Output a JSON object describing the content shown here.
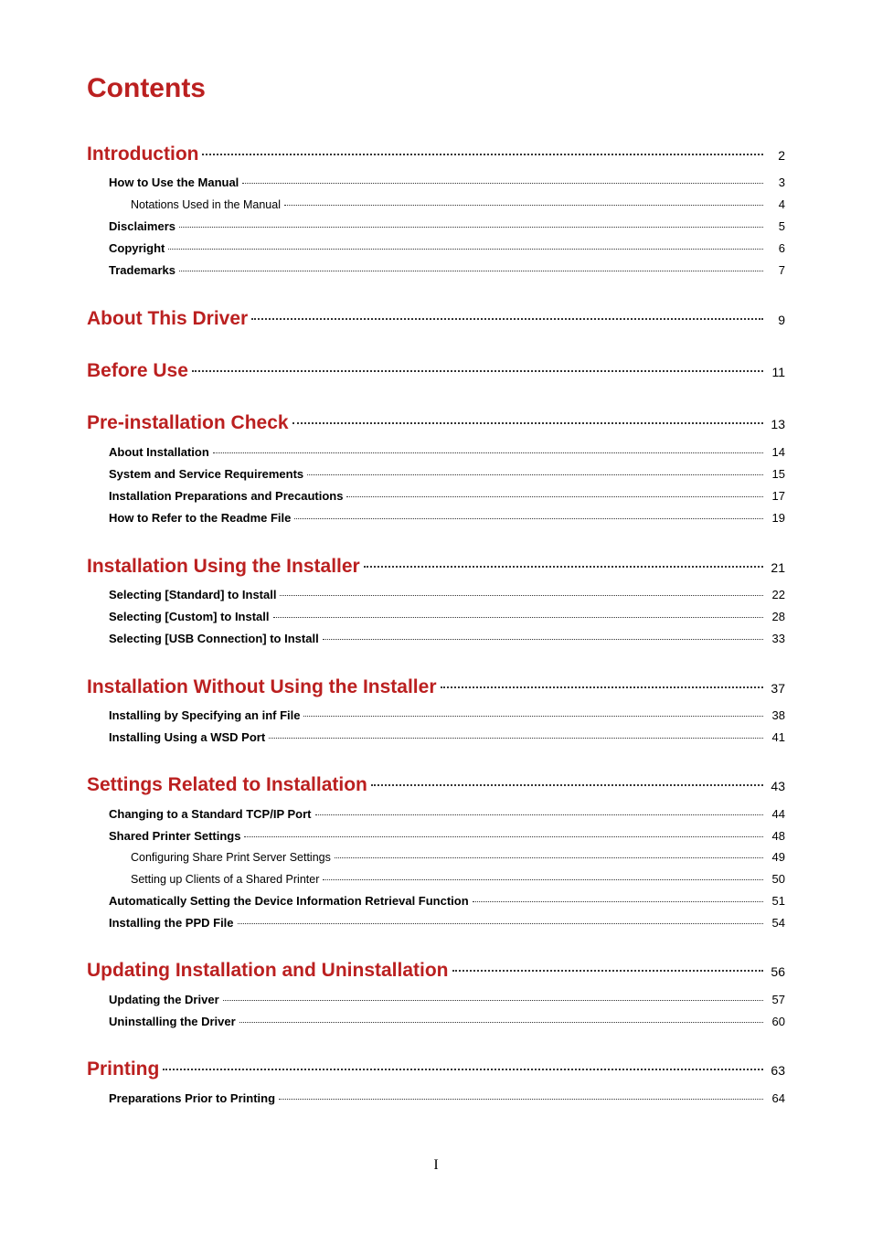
{
  "title": "Contents",
  "accent_color": "#bb2020",
  "page_footer": "I",
  "sections": [
    {
      "label": "Introduction",
      "page": "2",
      "children": [
        {
          "label": "How to Use the Manual",
          "page": "3",
          "children": [
            {
              "label": "Notations Used in the Manual",
              "page": "4"
            }
          ]
        },
        {
          "label": "Disclaimers",
          "page": "5"
        },
        {
          "label": "Copyright",
          "page": "6"
        },
        {
          "label": "Trademarks",
          "page": "7"
        }
      ]
    },
    {
      "label": "About This Driver",
      "page": "9",
      "children": []
    },
    {
      "label": "Before Use",
      "page": "11",
      "children": []
    },
    {
      "label": "Pre-installation Check",
      "page": "13",
      "children": [
        {
          "label": "About Installation",
          "page": "14"
        },
        {
          "label": "System and Service Requirements",
          "page": "15"
        },
        {
          "label": "Installation Preparations and Precautions",
          "page": "17"
        },
        {
          "label": "How to Refer to the Readme File",
          "page": "19"
        }
      ]
    },
    {
      "label": "Installation Using the Installer",
      "page": "21",
      "children": [
        {
          "label": "Selecting [Standard] to Install",
          "page": "22"
        },
        {
          "label": "Selecting [Custom] to Install",
          "page": "28"
        },
        {
          "label": "Selecting [USB Connection] to Install",
          "page": "33"
        }
      ]
    },
    {
      "label": "Installation Without Using the Installer",
      "page": "37",
      "children": [
        {
          "label": "Installing by Specifying an inf File",
          "page": "38"
        },
        {
          "label": "Installing Using a WSD Port",
          "page": "41"
        }
      ]
    },
    {
      "label": "Settings Related to Installation",
      "page": "43",
      "children": [
        {
          "label": "Changing to a Standard TCP/IP Port",
          "page": "44"
        },
        {
          "label": "Shared Printer Settings",
          "page": "48",
          "children": [
            {
              "label": "Configuring Share Print Server Settings",
              "page": "49"
            },
            {
              "label": "Setting up Clients of a Shared Printer",
              "page": "50"
            }
          ]
        },
        {
          "label": "Automatically Setting the Device Information Retrieval Function",
          "page": "51"
        },
        {
          "label": "Installing the PPD File",
          "page": "54"
        }
      ]
    },
    {
      "label": "Updating Installation and Uninstallation",
      "page": "56",
      "children": [
        {
          "label": "Updating the Driver",
          "page": "57"
        },
        {
          "label": "Uninstalling the Driver",
          "page": "60"
        }
      ]
    },
    {
      "label": "Printing",
      "page": "63",
      "children": [
        {
          "label": "Preparations Prior to Printing",
          "page": "64"
        }
      ]
    }
  ]
}
